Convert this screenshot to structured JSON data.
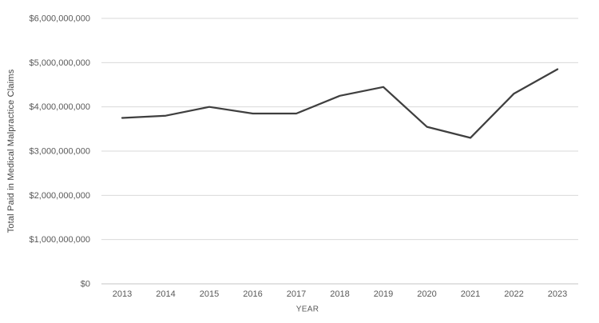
{
  "chart_data": {
    "type": "line",
    "title": "",
    "xlabel": "YEAR",
    "ylabel": "Total Paid in Medical Malpractice Claims",
    "categories": [
      "2013",
      "2014",
      "2015",
      "2016",
      "2017",
      "2018",
      "2019",
      "2020",
      "2021",
      "2022",
      "2023"
    ],
    "values": [
      3750000000,
      3800000000,
      4000000000,
      3850000000,
      3850000000,
      4250000000,
      4450000000,
      3550000000,
      3300000000,
      4300000000,
      4850000000
    ],
    "ylim": [
      0,
      6000000000
    ],
    "y_ticks": [
      0,
      1000000000,
      2000000000,
      3000000000,
      4000000000,
      5000000000,
      6000000000
    ],
    "y_tick_labels": [
      "$0",
      "$1,000,000,000",
      "$2,000,000,000",
      "$3,000,000,000",
      "$4,000,000,000",
      "$5,000,000,000",
      "$6,000,000,000"
    ],
    "grid": true,
    "legend": false
  },
  "colors": {
    "line": "#3f3f3f",
    "gridline": "#d9d9d9",
    "axis_line": "#c5c5c5",
    "tick_label": "#595959",
    "axis_title": "#444444",
    "background": "#ffffff"
  }
}
